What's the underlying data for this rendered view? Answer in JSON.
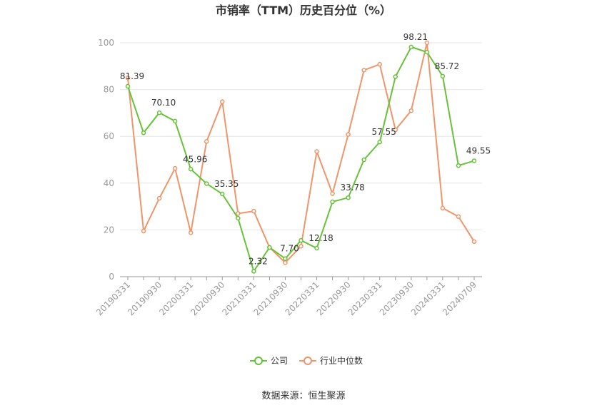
{
  "chart_data": {
    "type": "line",
    "title": "市销率（TTM）历史百分位（%）",
    "categories": [
      "20190331",
      null,
      "20190930",
      null,
      "20200331",
      null,
      "20200930",
      null,
      "20210331",
      null,
      "20210930",
      null,
      "20220331",
      null,
      "20220930",
      null,
      "20230331",
      null,
      "20230930",
      null,
      "20240331",
      null,
      "20240709"
    ],
    "series": [
      {
        "name": "公司",
        "color": "#67c23a",
        "values": [
          81.39,
          61.5,
          70.1,
          66.5,
          45.96,
          39.8,
          35.35,
          25,
          2.32,
          12.5,
          7.7,
          15.5,
          12.18,
          32,
          33.78,
          50,
          57.55,
          85.5,
          98.21,
          96,
          85.72,
          47.5,
          49.55
        ],
        "value_labels": [
          "81.39",
          null,
          "70.10",
          null,
          "45.96",
          null,
          "35.35",
          null,
          "2.32",
          null,
          "7.70",
          null,
          "12.18",
          null,
          "33.78",
          null,
          "57.55",
          null,
          "98.21",
          null,
          "85.72",
          null,
          "49.55"
        ]
      },
      {
        "name": "行业中位数",
        "color": "#f0956a",
        "values": [
          85,
          19.5,
          33.5,
          46.3,
          18.8,
          57.8,
          74.8,
          27,
          28,
          12.5,
          6,
          13,
          53.5,
          35.5,
          60.8,
          88.3,
          90.8,
          62.8,
          71,
          100,
          29.3,
          25.7,
          15
        ]
      }
    ],
    "ylim": [
      0,
      100
    ],
    "yticks": [
      0,
      20,
      40,
      60,
      80,
      100
    ],
    "grid": true,
    "legend": "bottom",
    "source": "数据来源：恒生聚源"
  }
}
